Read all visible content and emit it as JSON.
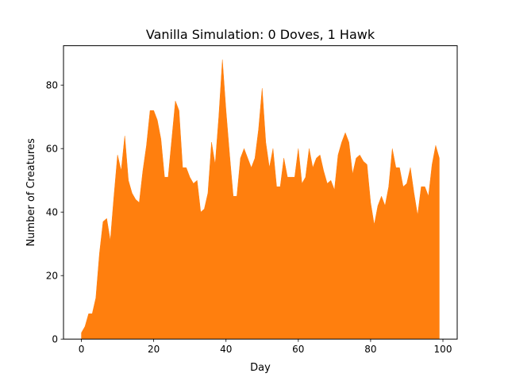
{
  "chart_data": {
    "type": "area",
    "title": "Vanilla Simulation: 0 Doves, 1 Hawk",
    "xlabel": "Day",
    "ylabel": "Number of Creatures",
    "xlim": [
      -4.95,
      103.95
    ],
    "ylim": [
      0,
      92.4
    ],
    "xticks": [
      0,
      20,
      40,
      60,
      80,
      100
    ],
    "yticks": [
      0,
      20,
      40,
      60,
      80
    ],
    "grid": false,
    "series": [
      {
        "color": "#ff7f0e",
        "x": [
          0,
          1,
          2,
          3,
          4,
          5,
          6,
          7,
          8,
          9,
          10,
          11,
          12,
          13,
          14,
          15,
          16,
          17,
          18,
          19,
          20,
          21,
          22,
          23,
          24,
          25,
          26,
          27,
          28,
          29,
          30,
          31,
          32,
          33,
          34,
          35,
          36,
          37,
          38,
          39,
          40,
          41,
          42,
          43,
          44,
          45,
          46,
          47,
          48,
          49,
          50,
          51,
          52,
          53,
          54,
          55,
          56,
          57,
          58,
          59,
          60,
          61,
          62,
          63,
          64,
          65,
          66,
          67,
          68,
          69,
          70,
          71,
          72,
          73,
          74,
          75,
          76,
          77,
          78,
          79,
          80,
          81,
          82,
          83,
          84,
          85,
          86,
          87,
          88,
          89,
          90,
          91,
          92,
          93,
          94,
          95,
          96,
          97,
          98,
          99
        ],
        "values": [
          2,
          4,
          8,
          8,
          13,
          27,
          37,
          38,
          31,
          45,
          58,
          53,
          64,
          50,
          46,
          44,
          43,
          53,
          61,
          72,
          72,
          69,
          63,
          51,
          51,
          63,
          75,
          72,
          54,
          54,
          51,
          49,
          50,
          40,
          41,
          46,
          62,
          55,
          70,
          88,
          72,
          58,
          45,
          45,
          57,
          60,
          57,
          54,
          57,
          66,
          79,
          62,
          54,
          60,
          48,
          48,
          57,
          51,
          51,
          51,
          60,
          49,
          51,
          60,
          54,
          57,
          58,
          53,
          49,
          50,
          47,
          58,
          62,
          65,
          62,
          52,
          57,
          58,
          56,
          55,
          43,
          36,
          42,
          45,
          42,
          48,
          60,
          54,
          54,
          48,
          49,
          54,
          46,
          39,
          48,
          48,
          45,
          55,
          61,
          57
        ]
      }
    ]
  }
}
